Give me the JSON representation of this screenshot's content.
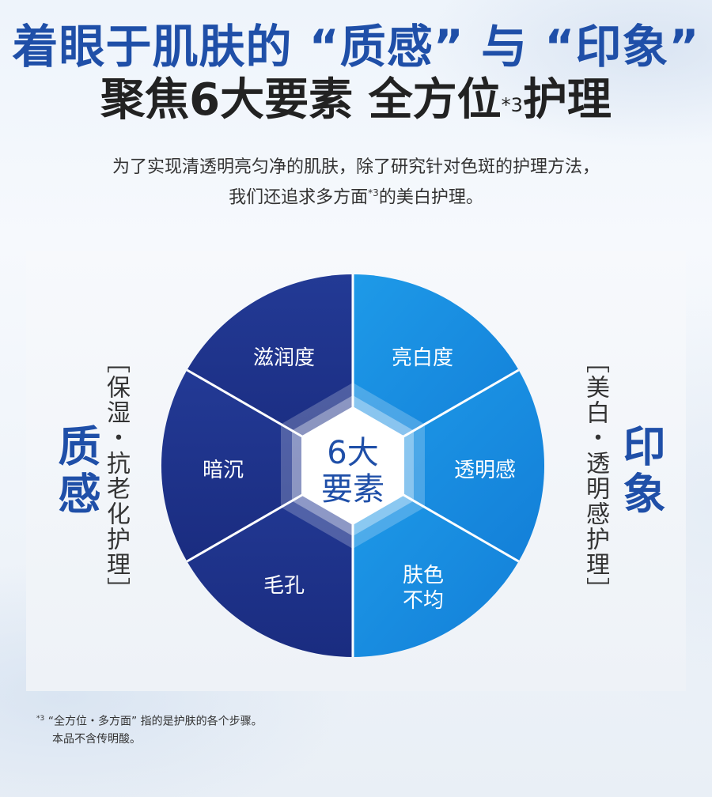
{
  "title_line1": "着眼于肌肤的 “质感” 与 “印象”",
  "title_line2_main": "聚焦6大要素 全方位",
  "title_line2_sup": "*3",
  "title_line2_end": "护理",
  "desc_line1": "为了实现清透明亮匀净的肌肤，除了研究针对色斑的护理方法，",
  "desc_line2_a": "我们还追求多方面",
  "desc_line2_sup": "*3",
  "desc_line2_b": "的美白护理。",
  "left_big": "质感",
  "left_vertical": "［保湿・抗老化护理］",
  "right_big": "印象",
  "right_vertical": "［美白・透明感护理］",
  "center_line1": "6大",
  "center_line2": "要素",
  "segments": {
    "top_left": "滋润度",
    "left": "暗沉",
    "bottom_left": "毛孔",
    "top_right": "亮白度",
    "right": "透明感",
    "bottom_right_1": "肤色",
    "bottom_right_2": "不均"
  },
  "colors": {
    "dark_blue": "#1b2f86",
    "light_blue": "#1a8ee3",
    "title_blue": "#1f4fa8"
  },
  "footnote_sup": "*3",
  "footnote_line1": "“全方位・多方面” 指的是护肤的各个步骤。",
  "footnote_line2": "本品不含传明酸。"
}
